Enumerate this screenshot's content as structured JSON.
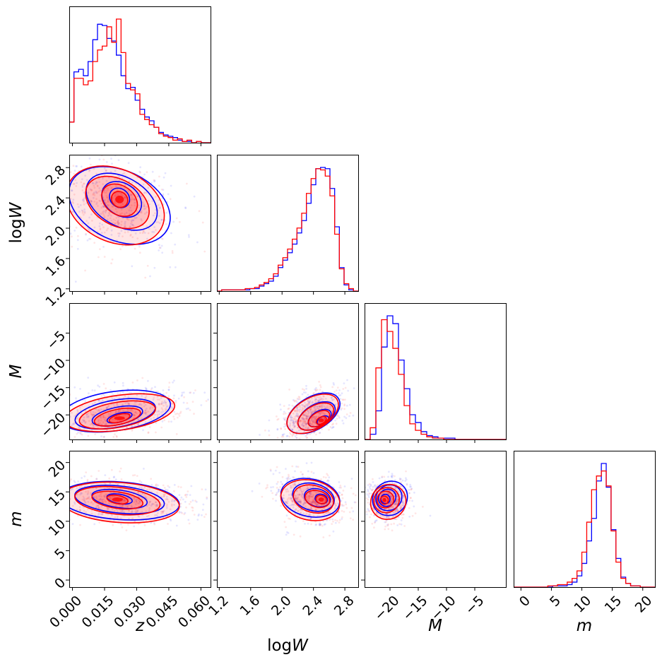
{
  "chart_data": {
    "type": "corner",
    "variables": [
      {
        "name": "z",
        "label_prefix": "",
        "label_italic": "z",
        "range": [
          -0.0015,
          0.0645
        ],
        "ticks": [
          0.0,
          0.015,
          0.03,
          0.045,
          0.06
        ],
        "tick_labels": [
          "0.000",
          "0.015",
          "0.030",
          "0.045",
          "0.060"
        ]
      },
      {
        "name": "logW",
        "label_prefix": "log",
        "label_italic": "W",
        "range": [
          1.17,
          2.97
        ],
        "ticks": [
          1.2,
          1.6,
          2.0,
          2.4,
          2.8
        ],
        "tick_labels": [
          "1.2",
          "1.6",
          "2.0",
          "2.4",
          "2.8"
        ]
      },
      {
        "name": "M",
        "label_prefix": "",
        "label_italic": "M",
        "range": [
          -24.5,
          0.5
        ],
        "ticks": [
          -20,
          -15,
          -10,
          -5
        ],
        "tick_labels": [
          "−20",
          "−15",
          "−10",
          "−5"
        ]
      },
      {
        "name": "m",
        "label_prefix": "",
        "label_italic": "m",
        "range": [
          -1.2,
          22.0
        ],
        "ticks": [
          0,
          5,
          10,
          15,
          20
        ],
        "tick_labels": [
          "0",
          "5",
          "10",
          "15",
          "20"
        ]
      }
    ],
    "series": [
      {
        "name": "blue sample",
        "color": "#0000ff"
      },
      {
        "name": "red sample",
        "color": "#ff0000"
      }
    ],
    "histograms": {
      "z": {
        "bins": [
          -0.0015,
          0.0007,
          0.0029,
          0.0051,
          0.0073,
          0.0095,
          0.0117,
          0.0139,
          0.0161,
          0.0183,
          0.0205,
          0.0227,
          0.0249,
          0.0271,
          0.0293,
          0.0315,
          0.0337,
          0.0359,
          0.0381,
          0.0403,
          0.0425,
          0.0447,
          0.0469,
          0.0491,
          0.0513,
          0.0535,
          0.0557,
          0.0579,
          0.0601,
          0.0623,
          0.0645
        ],
        "blue": [
          0.16,
          0.55,
          0.57,
          0.52,
          0.63,
          0.8,
          0.92,
          0.91,
          0.81,
          0.79,
          0.68,
          0.52,
          0.42,
          0.43,
          0.33,
          0.26,
          0.2,
          0.17,
          0.12,
          0.08,
          0.06,
          0.05,
          0.04,
          0.02,
          0.01,
          0.01,
          0.0,
          0.01,
          0.0,
          0.0
        ],
        "red": [
          0.16,
          0.5,
          0.5,
          0.45,
          0.48,
          0.63,
          0.72,
          0.75,
          0.9,
          0.78,
          0.96,
          0.7,
          0.46,
          0.41,
          0.38,
          0.22,
          0.18,
          0.14,
          0.12,
          0.07,
          0.05,
          0.04,
          0.02,
          0.03,
          0.01,
          0.02,
          0.0,
          0.01,
          0.0,
          0.0
        ]
      },
      "logW": {
        "bins": [
          1.17,
          1.23,
          1.29,
          1.35,
          1.41,
          1.47,
          1.53,
          1.59,
          1.65,
          1.71,
          1.77,
          1.83,
          1.89,
          1.95,
          2.01,
          2.07,
          2.13,
          2.19,
          2.25,
          2.31,
          2.37,
          2.43,
          2.49,
          2.55,
          2.61,
          2.67,
          2.73,
          2.79,
          2.85,
          2.91,
          2.97
        ],
        "blue": [
          0.0,
          0.01,
          0.01,
          0.01,
          0.01,
          0.01,
          0.01,
          0.02,
          0.02,
          0.04,
          0.06,
          0.08,
          0.12,
          0.19,
          0.25,
          0.31,
          0.38,
          0.47,
          0.57,
          0.71,
          0.86,
          0.99,
          1.0,
          0.99,
          0.83,
          0.52,
          0.19,
          0.05,
          0.01,
          0.0
        ],
        "red": [
          0.0,
          0.01,
          0.01,
          0.01,
          0.01,
          0.01,
          0.02,
          0.02,
          0.03,
          0.05,
          0.07,
          0.1,
          0.14,
          0.21,
          0.27,
          0.34,
          0.42,
          0.51,
          0.63,
          0.79,
          0.91,
          0.99,
          0.98,
          0.93,
          0.77,
          0.46,
          0.18,
          0.06,
          0.02,
          0.0
        ]
      },
      "M": {
        "bins": [
          -24.5,
          -23.5,
          -22.5,
          -21.5,
          -20.5,
          -19.5,
          -18.5,
          -17.5,
          -16.5,
          -15.5,
          -14.5,
          -13.5,
          -12.5,
          -11.5,
          -10.5,
          -9.5,
          -8.5,
          -7.5,
          -6.5,
          -5.5,
          -4.5,
          -3.5,
          -2.5,
          -1.5,
          -0.5,
          0.5
        ],
        "blue": [
          0.0,
          0.04,
          0.22,
          0.71,
          0.95,
          0.89,
          0.61,
          0.39,
          0.19,
          0.13,
          0.06,
          0.03,
          0.02,
          0.01,
          0.01,
          0.01,
          0.0,
          0.0,
          0.0,
          0.0,
          0.0,
          0.0,
          0.0,
          0.0,
          0.0
        ],
        "red": [
          0.0,
          0.09,
          0.55,
          0.92,
          0.83,
          0.7,
          0.5,
          0.26,
          0.12,
          0.07,
          0.04,
          0.02,
          0.01,
          0.01,
          0.0,
          0.0,
          0.0,
          0.0,
          0.0,
          0.0,
          0.0,
          0.0,
          0.0,
          0.0,
          0.0
        ]
      },
      "m": {
        "bins": [
          -1.2,
          -0.4,
          0.4,
          1.2,
          2.0,
          2.8,
          3.6,
          4.4,
          5.2,
          6.0,
          6.8,
          7.6,
          8.4,
          9.2,
          10.0,
          10.8,
          11.6,
          12.4,
          13.2,
          14.0,
          14.8,
          15.6,
          16.4,
          17.2,
          18.0,
          18.8,
          19.6,
          20.4,
          21.2,
          22.0
        ],
        "blue": [
          0.0,
          0.0,
          0.0,
          0.0,
          0.0,
          0.0,
          0.0,
          0.0,
          0.01,
          0.01,
          0.01,
          0.02,
          0.04,
          0.09,
          0.19,
          0.37,
          0.55,
          0.85,
          0.99,
          0.8,
          0.46,
          0.23,
          0.08,
          0.03,
          0.01,
          0.01,
          0.0,
          0.0,
          0.0
        ],
        "red": [
          0.0,
          0.0,
          0.0,
          0.0,
          0.0,
          0.0,
          0.0,
          0.01,
          0.01,
          0.02,
          0.02,
          0.04,
          0.07,
          0.13,
          0.28,
          0.52,
          0.78,
          0.89,
          0.93,
          0.81,
          0.45,
          0.2,
          0.07,
          0.03,
          0.01,
          0.01,
          0.0,
          0.0,
          0.0
        ]
      }
    },
    "pairs": [
      {
        "x": "z",
        "y": "logW",
        "red_filled_mode": true,
        "blue": [
          {
            "cx": 0.022,
            "cy": 2.4,
            "a": 0.005,
            "b": 0.12,
            "rot": -40
          },
          {
            "cx": 0.023,
            "cy": 2.38,
            "a": 0.01,
            "b": 0.21,
            "rot": -35
          },
          {
            "cx": 0.023,
            "cy": 2.35,
            "a": 0.018,
            "b": 0.32,
            "rot": -30
          },
          {
            "cx": 0.022,
            "cy": 2.3,
            "a": 0.025,
            "b": 0.46,
            "rot": -25
          }
        ],
        "red": [
          {
            "cx": 0.022,
            "cy": 2.38,
            "a": 0.004,
            "b": 0.1,
            "rot": -40
          },
          {
            "cx": 0.022,
            "cy": 2.37,
            "a": 0.009,
            "b": 0.19,
            "rot": -35
          },
          {
            "cx": 0.021,
            "cy": 2.34,
            "a": 0.016,
            "b": 0.3,
            "rot": -30
          },
          {
            "cx": 0.02,
            "cy": 2.3,
            "a": 0.024,
            "b": 0.48,
            "rot": -25
          }
        ]
      },
      {
        "x": "z",
        "y": "M",
        "red_filled_mode": true,
        "blue": [
          {
            "cx": 0.022,
            "cy": -20.5,
            "a": 0.006,
            "b": 0.8,
            "rot": 15
          },
          {
            "cx": 0.021,
            "cy": -20.2,
            "a": 0.012,
            "b": 1.6,
            "rot": 12
          },
          {
            "cx": 0.02,
            "cy": -19.8,
            "a": 0.019,
            "b": 2.5,
            "rot": 10
          },
          {
            "cx": 0.02,
            "cy": -19.3,
            "a": 0.026,
            "b": 3.6,
            "rot": 8
          }
        ],
        "red": [
          {
            "cx": 0.022,
            "cy": -20.6,
            "a": 0.005,
            "b": 0.7,
            "rot": 15
          },
          {
            "cx": 0.021,
            "cy": -20.4,
            "a": 0.011,
            "b": 1.4,
            "rot": 12
          },
          {
            "cx": 0.021,
            "cy": -20.0,
            "a": 0.018,
            "b": 2.3,
            "rot": 10
          },
          {
            "cx": 0.022,
            "cy": -19.6,
            "a": 0.026,
            "b": 3.2,
            "rot": 8
          }
        ]
      },
      {
        "x": "logW",
        "y": "M",
        "red_filled_mode": true,
        "blue": [
          {
            "cx": 2.52,
            "cy": -21.0,
            "a": 0.08,
            "b": 0.7,
            "rot": 30
          },
          {
            "cx": 2.48,
            "cy": -20.6,
            "a": 0.16,
            "b": 1.3,
            "rot": 30
          },
          {
            "cx": 2.44,
            "cy": -20.2,
            "a": 0.26,
            "b": 2.1,
            "rot": 30
          },
          {
            "cx": 2.4,
            "cy": -19.7,
            "a": 0.37,
            "b": 3.0,
            "rot": 30
          }
        ],
        "red": [
          {
            "cx": 2.5,
            "cy": -21.0,
            "a": 0.07,
            "b": 0.6,
            "rot": 30
          },
          {
            "cx": 2.47,
            "cy": -20.7,
            "a": 0.15,
            "b": 1.2,
            "rot": 30
          },
          {
            "cx": 2.43,
            "cy": -20.3,
            "a": 0.25,
            "b": 2.0,
            "rot": 30
          },
          {
            "cx": 2.39,
            "cy": -19.8,
            "a": 0.36,
            "b": 2.9,
            "rot": 30
          }
        ]
      },
      {
        "x": "z",
        "y": "m",
        "red_filled_mode": true,
        "blue": [
          {
            "cx": 0.022,
            "cy": 13.8,
            "a": 0.006,
            "b": 0.8,
            "rot": -10
          },
          {
            "cx": 0.022,
            "cy": 13.8,
            "a": 0.013,
            "b": 1.5,
            "rot": -8
          },
          {
            "cx": 0.022,
            "cy": 13.7,
            "a": 0.021,
            "b": 2.3,
            "rot": -6
          },
          {
            "cx": 0.022,
            "cy": 13.5,
            "a": 0.028,
            "b": 3.2,
            "rot": -4
          }
        ],
        "red": [
          {
            "cx": 0.021,
            "cy": 13.7,
            "a": 0.005,
            "b": 0.7,
            "rot": -10
          },
          {
            "cx": 0.021,
            "cy": 13.6,
            "a": 0.012,
            "b": 1.4,
            "rot": -8
          },
          {
            "cx": 0.021,
            "cy": 13.5,
            "a": 0.02,
            "b": 2.3,
            "rot": -6
          },
          {
            "cx": 0.022,
            "cy": 13.2,
            "a": 0.028,
            "b": 3.4,
            "rot": -4
          }
        ]
      },
      {
        "x": "logW",
        "y": "m",
        "red_filled_mode": true,
        "blue": [
          {
            "cx": 2.5,
            "cy": 13.8,
            "a": 0.08,
            "b": 0.8,
            "rot": -15
          },
          {
            "cx": 2.45,
            "cy": 14.0,
            "a": 0.17,
            "b": 1.5,
            "rot": -15
          },
          {
            "cx": 2.4,
            "cy": 14.1,
            "a": 0.27,
            "b": 2.3,
            "rot": -15
          },
          {
            "cx": 2.36,
            "cy": 14.0,
            "a": 0.38,
            "b": 3.2,
            "rot": -12
          }
        ],
        "red": [
          {
            "cx": 2.5,
            "cy": 13.7,
            "a": 0.07,
            "b": 0.7,
            "rot": -15
          },
          {
            "cx": 2.45,
            "cy": 13.8,
            "a": 0.16,
            "b": 1.4,
            "rot": -15
          },
          {
            "cx": 2.4,
            "cy": 13.8,
            "a": 0.26,
            "b": 2.3,
            "rot": -15
          },
          {
            "cx": 2.36,
            "cy": 13.6,
            "a": 0.38,
            "b": 3.4,
            "rot": -12
          }
        ]
      },
      {
        "x": "M",
        "y": "m",
        "red_filled_mode": true,
        "blue": [
          {
            "cx": -20.8,
            "cy": 13.8,
            "a": 0.8,
            "b": 0.8,
            "rot": 40
          },
          {
            "cx": -20.5,
            "cy": 14.0,
            "a": 1.6,
            "b": 1.4,
            "rot": 40
          },
          {
            "cx": -20.2,
            "cy": 14.0,
            "a": 2.4,
            "b": 2.1,
            "rot": 40
          },
          {
            "cx": -20.0,
            "cy": 13.9,
            "a": 3.2,
            "b": 2.8,
            "rot": 40
          }
        ],
        "red": [
          {
            "cx": -21.0,
            "cy": 13.6,
            "a": 0.7,
            "b": 0.7,
            "rot": 40
          },
          {
            "cx": -20.8,
            "cy": 13.7,
            "a": 1.5,
            "b": 1.4,
            "rot": 40
          },
          {
            "cx": -20.6,
            "cy": 13.6,
            "a": 2.3,
            "b": 2.1,
            "rot": 40
          },
          {
            "cx": -20.3,
            "cy": 13.3,
            "a": 3.2,
            "b": 2.9,
            "rot": 40
          }
        ]
      }
    ],
    "scatter_seed": 7,
    "scatter_points_per_panel": 320
  }
}
